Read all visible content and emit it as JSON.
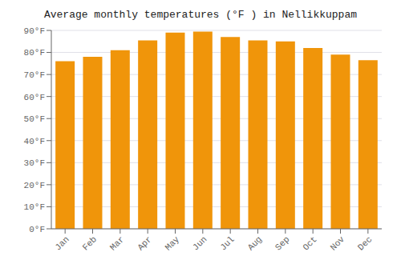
{
  "chart_data": {
    "type": "bar",
    "title": "Average monthly temperatures (°F ) in Nellikkuppam",
    "categories": [
      "Jan",
      "Feb",
      "Mar",
      "Apr",
      "May",
      "Jun",
      "Jul",
      "Aug",
      "Sep",
      "Oct",
      "Nov",
      "Dec"
    ],
    "values": [
      76,
      78,
      81,
      85.5,
      89,
      89.5,
      87,
      85.5,
      85,
      82,
      79,
      76.5
    ],
    "color": "#F0950A",
    "ylim": [
      0,
      90
    ],
    "yticks": [
      {
        "value": 0,
        "label": "0°F"
      },
      {
        "value": 10,
        "label": "10°F"
      },
      {
        "value": 20,
        "label": "20°F"
      },
      {
        "value": 30,
        "label": "30°F"
      },
      {
        "value": 40,
        "label": "40°F"
      },
      {
        "value": 50,
        "label": "50°F"
      },
      {
        "value": 60,
        "label": "60°F"
      },
      {
        "value": 70,
        "label": "70°F"
      },
      {
        "value": 80,
        "label": "80°F"
      },
      {
        "value": 90,
        "label": "90°F"
      }
    ],
    "grid": true
  }
}
